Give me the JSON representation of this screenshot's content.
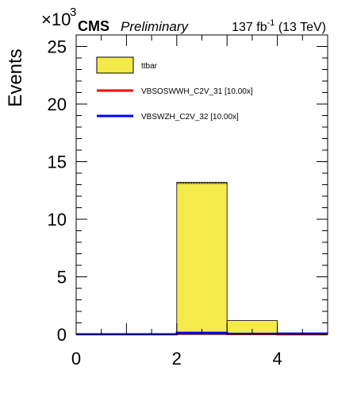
{
  "header": {
    "experiment": "CMS",
    "status": "Preliminary",
    "lumi_value": "137 fb",
    "lumi_exp": "-1",
    "lumi_energy": " (13 TeV)",
    "multiplier_base": "×10",
    "multiplier_exp": "3"
  },
  "chart_data": {
    "type": "bar",
    "ylabel": "Events",
    "xlabel": "",
    "xlim": [
      0,
      5
    ],
    "ylim": [
      0,
      26
    ],
    "y_scale_note": "×10^3",
    "x_ticks": [
      "0",
      "2",
      "4"
    ],
    "y_ticks": [
      "0",
      "5",
      "10",
      "15",
      "20",
      "25"
    ],
    "bin_edges": [
      0,
      1,
      2,
      3,
      4,
      5
    ],
    "legend_position": "top-left",
    "series": [
      {
        "name": "ttbar",
        "style": "filled",
        "color": "#f4ea4a",
        "values": [
          0.05,
          0.05,
          13.2,
          1.2,
          0.1
        ]
      },
      {
        "name": "VBSOSWWH_C2V_31 [10.00x]",
        "style": "line",
        "color": "#ff0000",
        "values": [
          0.0,
          0.0,
          0.08,
          0.03,
          0.0
        ]
      },
      {
        "name": "VBSWZH_C2V_32 [10.00x]",
        "style": "line",
        "color": "#0000ff",
        "values": [
          0.02,
          0.02,
          0.15,
          0.06,
          0.08
        ]
      }
    ]
  }
}
